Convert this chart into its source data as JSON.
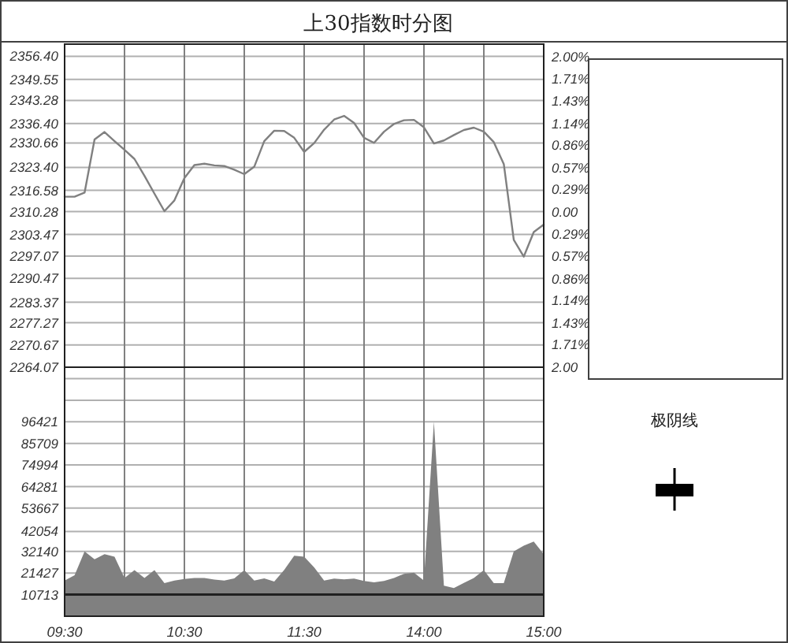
{
  "chart_data": [
    {
      "type": "line",
      "title": "上30指数时分图",
      "categories": [
        null,
        null,
        null,
        null,
        null,
        null,
        null,
        null,
        null,
        null,
        null,
        null,
        null,
        null,
        null,
        null,
        null,
        null,
        null,
        null,
        null,
        null,
        null,
        null,
        null,
        null,
        null,
        null,
        null,
        null,
        null,
        null,
        null,
        null,
        null,
        null,
        null,
        null,
        null,
        null,
        null,
        null,
        null,
        null,
        null,
        null,
        null,
        null,
        null
      ],
      "series": [
        {
          "color": "#808080",
          "values": [
            2314.7,
            2314.7,
            2315.9,
            2331.7,
            2333.9,
            2331.2,
            2328.6,
            2325.9,
            2320.9,
            2315.6,
            2310.4,
            2313.6,
            2320.2,
            2324.1,
            2324.5,
            2324.0,
            2323.8,
            2322.7,
            2321.4,
            2323.6,
            2331.2,
            2334.3,
            2334.2,
            2332.2,
            2328.0,
            2330.6,
            2334.6,
            2337.6,
            2338.7,
            2336.6,
            2332.2,
            2330.7,
            2334.0,
            2336.3,
            2337.4,
            2337.5,
            2335.3,
            2330.5,
            2331.4,
            2333.0,
            2334.5,
            2335.2,
            2334.0,
            2330.9,
            2324.4,
            2301.9,
            2296.9,
            2304.2,
            2306.4
          ]
        }
      ],
      "ylim": [
        2264.07,
        2360
      ],
      "yticks": [
        {
          "value": 2356.4,
          "label": "2356.40"
        },
        2349.55,
        2343.28,
        {
          "value": 2336.4,
          "label": "2336.40"
        },
        2330.66,
        {
          "value": 2323.4,
          "label": "2323.40"
        },
        2316.58,
        2310.28,
        2303.47,
        2297.07,
        2290.47,
        2283.37,
        2277.27,
        2270.67,
        2264.07
      ],
      "y2lim": [
        -2,
        2.16
      ],
      "y2ticks": [
        {
          "value": 2,
          "label": "2.00%"
        },
        {
          "value": 1.71,
          "label": "1.71%"
        },
        {
          "value": 1.43,
          "label": "1.43%"
        },
        {
          "value": 1.14,
          "label": "1.14%"
        },
        {
          "value": 0.86,
          "label": "0.86%"
        },
        {
          "value": 0.57,
          "label": "0.57%"
        },
        {
          "value": 0.29,
          "label": "0.29%"
        },
        {
          "value": 0,
          "label": "0.00"
        },
        {
          "value": -0.29,
          "label": "0.29%"
        },
        {
          "value": -0.57,
          "label": "0.57%"
        },
        {
          "value": -0.86,
          "label": "0.86%"
        },
        {
          "value": -1.14,
          "label": "1.14%"
        },
        {
          "value": -1.43,
          "label": "1.43%"
        },
        {
          "value": -1.71,
          "label": "1.71%"
        },
        {
          "value": -2,
          "label": "2.00"
        }
      ],
      "grid": true,
      "tick_labels": "y"
    },
    {
      "type": "area",
      "categories": [
        "09:30",
        null,
        null,
        null,
        null,
        null,
        null,
        null,
        null,
        null,
        null,
        null,
        "10:30",
        null,
        null,
        null,
        null,
        null,
        null,
        null,
        null,
        null,
        null,
        null,
        "11:30",
        null,
        null,
        null,
        null,
        null,
        null,
        null,
        null,
        null,
        null,
        null,
        "14:00",
        null,
        null,
        null,
        null,
        null,
        null,
        null,
        null,
        null,
        null,
        null,
        "15:00"
      ],
      "series": [
        {
          "color": "#808080",
          "values": [
            17700,
            20300,
            32100,
            28200,
            30800,
            29500,
            19000,
            22900,
            19000,
            22900,
            16400,
            17700,
            18500,
            19000,
            19000,
            18200,
            17700,
            18800,
            22900,
            17700,
            18800,
            17200,
            23000,
            30000,
            29500,
            24200,
            17700,
            18700,
            18300,
            18700,
            17500,
            16800,
            17500,
            19000,
            21000,
            21600,
            17700,
            96400,
            15100,
            14000,
            16500,
            19000,
            22900,
            16400,
            16400,
            32100,
            35000,
            37000,
            30800
          ]
        }
      ],
      "ylim": [
        0,
        123500
      ],
      "yticks": [
        {
          "value": 117847,
          "label": null
        },
        {
          "value": 107134,
          "label": null
        },
        96421,
        85709,
        74994,
        64281,
        53667,
        42054,
        32140,
        21427,
        10713
      ],
      "ref_lines": [
        {
          "axis": "y",
          "value": 10713,
          "color": "#202020"
        }
      ],
      "grid": true,
      "annotations": [
        "极阴线"
      ]
    }
  ]
}
